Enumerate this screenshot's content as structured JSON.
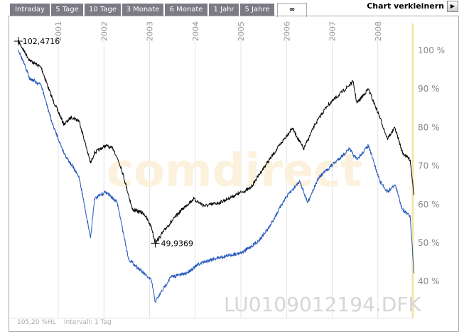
{
  "tabs": [
    {
      "label": "Intraday"
    },
    {
      "label": "5 Tage"
    },
    {
      "label": "10 Tage"
    },
    {
      "label": "3 Monate"
    },
    {
      "label": "6 Monate"
    },
    {
      "label": "1 Jahr"
    },
    {
      "label": "5 Jahre"
    },
    {
      "label": "∞",
      "active": true
    }
  ],
  "shrink_label": "Chart verkleinern",
  "shrink_icon": "play-right-icon",
  "watermark": "comdirect",
  "symbol": "LU0109012194.DFK",
  "footer": {
    "range": "105,20 %HL",
    "interval": "Intervall: 1 Tag"
  },
  "chart_data": {
    "type": "line",
    "x_ticks": [
      "2001",
      "2002",
      "2003",
      "2004",
      "2005",
      "2006",
      "2007",
      "2008"
    ],
    "y_ticks": [
      "100 %",
      "90 %",
      "80 %",
      "70 %",
      "60 %",
      "50 %",
      "40 %"
    ],
    "y_tick_values": [
      100,
      90,
      80,
      70,
      60,
      50,
      40
    ],
    "ylim": [
      32,
      107
    ],
    "grid": "vertical",
    "annotations": {
      "max": "102,4716",
      "min": "49,9369"
    },
    "colors": {
      "black_series": "#000000",
      "blue_series": "#2255bb",
      "marker_line": "#f5e6a8"
    },
    "series": [
      {
        "color": "#000000",
        "points": [
          [
            "2000-02",
            102.4
          ],
          [
            "2000-05",
            97.4
          ],
          [
            "2000-08",
            95.6
          ],
          [
            "2000-11",
            87.3
          ],
          [
            "2001-02",
            80.8
          ],
          [
            "2001-04",
            82.7
          ],
          [
            "2001-06",
            81.7
          ],
          [
            "2001-09",
            70.7
          ],
          [
            "2001-10",
            73.4
          ],
          [
            "2002-01",
            75.3
          ],
          [
            "2002-03",
            74.4
          ],
          [
            "2002-05",
            69.7
          ],
          [
            "2002-08",
            58.7
          ],
          [
            "2002-11",
            57.7
          ],
          [
            "2003-01",
            54.1
          ],
          [
            "2003-02",
            49.94
          ],
          [
            "2003-05",
            54.1
          ],
          [
            "2003-09",
            58.7
          ],
          [
            "2003-12",
            61.4
          ],
          [
            "2004-03",
            59.6
          ],
          [
            "2004-07",
            60.5
          ],
          [
            "2004-11",
            62.4
          ],
          [
            "2005-03",
            64.2
          ],
          [
            "2005-06",
            68.8
          ],
          [
            "2005-10",
            74.4
          ],
          [
            "2006-02",
            79.9
          ],
          [
            "2006-05",
            74.4
          ],
          [
            "2006-08",
            80.8
          ],
          [
            "2006-11",
            85.4
          ],
          [
            "2007-03",
            89.1
          ],
          [
            "2007-06",
            91.9
          ],
          [
            "2007-07",
            86.3
          ],
          [
            "2007-10",
            90.0
          ],
          [
            "2008-01",
            82.7
          ],
          [
            "2008-03",
            77.1
          ],
          [
            "2008-05",
            79.9
          ],
          [
            "2008-07",
            73.4
          ],
          [
            "2008-09",
            71.6
          ],
          [
            "2008-10",
            62.4
          ]
        ]
      },
      {
        "color": "#2255bb",
        "points": [
          [
            "2000-02",
            100.2
          ],
          [
            "2000-05",
            92.8
          ],
          [
            "2000-08",
            91.0
          ],
          [
            "2000-11",
            80.8
          ],
          [
            "2001-02",
            73.4
          ],
          [
            "2001-06",
            67.0
          ],
          [
            "2001-09",
            51.3
          ],
          [
            "2001-10",
            61.4
          ],
          [
            "2002-01",
            63.3
          ],
          [
            "2002-04",
            60.5
          ],
          [
            "2002-07",
            45.8
          ],
          [
            "2002-11",
            42.1
          ],
          [
            "2003-01",
            40.2
          ],
          [
            "2003-02",
            34.7
          ],
          [
            "2003-06",
            41.1
          ],
          [
            "2003-10",
            42.1
          ],
          [
            "2004-02",
            44.8
          ],
          [
            "2004-05",
            45.8
          ],
          [
            "2004-09",
            46.7
          ],
          [
            "2005-01",
            47.6
          ],
          [
            "2005-05",
            50.4
          ],
          [
            "2005-08",
            54.1
          ],
          [
            "2005-12",
            61.4
          ],
          [
            "2006-04",
            66.1
          ],
          [
            "2006-06",
            60.5
          ],
          [
            "2006-09",
            67.0
          ],
          [
            "2007-01",
            70.7
          ],
          [
            "2007-05",
            74.4
          ],
          [
            "2007-07",
            71.6
          ],
          [
            "2007-10",
            75.3
          ],
          [
            "2008-01",
            66.1
          ],
          [
            "2008-03",
            63.3
          ],
          [
            "2008-05",
            65.1
          ],
          [
            "2008-07",
            58.7
          ],
          [
            "2008-09",
            56.8
          ],
          [
            "2008-10",
            42.1
          ]
        ]
      }
    ]
  }
}
